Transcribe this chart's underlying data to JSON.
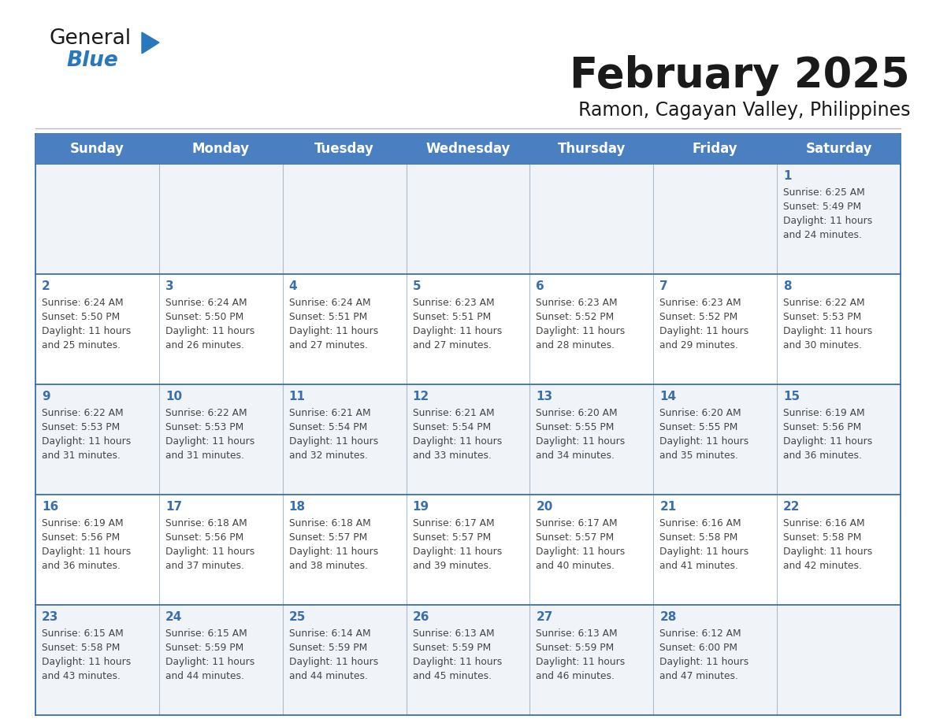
{
  "title": "February 2025",
  "subtitle": "Ramon, Cagayan Valley, Philippines",
  "header_bg": "#4a7fc1",
  "header_text_color": "#FFFFFF",
  "cell_bg_even": "#f0f4f8",
  "cell_bg_odd": "#FFFFFF",
  "border_color": "#3a6fad",
  "grid_color": "#aabbcc",
  "text_color": "#444444",
  "day_num_color": "#3a6fad",
  "days_of_week": [
    "Sunday",
    "Monday",
    "Tuesday",
    "Wednesday",
    "Thursday",
    "Friday",
    "Saturday"
  ],
  "calendar_data": [
    [
      null,
      null,
      null,
      null,
      null,
      null,
      {
        "day": "1",
        "sunrise": "6:25 AM",
        "sunset": "5:49 PM",
        "daylight": "11 hours",
        "daylight2": "and 24 minutes."
      }
    ],
    [
      {
        "day": "2",
        "sunrise": "6:24 AM",
        "sunset": "5:50 PM",
        "daylight": "11 hours",
        "daylight2": "and 25 minutes."
      },
      {
        "day": "3",
        "sunrise": "6:24 AM",
        "sunset": "5:50 PM",
        "daylight": "11 hours",
        "daylight2": "and 26 minutes."
      },
      {
        "day": "4",
        "sunrise": "6:24 AM",
        "sunset": "5:51 PM",
        "daylight": "11 hours",
        "daylight2": "and 27 minutes."
      },
      {
        "day": "5",
        "sunrise": "6:23 AM",
        "sunset": "5:51 PM",
        "daylight": "11 hours",
        "daylight2": "and 27 minutes."
      },
      {
        "day": "6",
        "sunrise": "6:23 AM",
        "sunset": "5:52 PM",
        "daylight": "11 hours",
        "daylight2": "and 28 minutes."
      },
      {
        "day": "7",
        "sunrise": "6:23 AM",
        "sunset": "5:52 PM",
        "daylight": "11 hours",
        "daylight2": "and 29 minutes."
      },
      {
        "day": "8",
        "sunrise": "6:22 AM",
        "sunset": "5:53 PM",
        "daylight": "11 hours",
        "daylight2": "and 30 minutes."
      }
    ],
    [
      {
        "day": "9",
        "sunrise": "6:22 AM",
        "sunset": "5:53 PM",
        "daylight": "11 hours",
        "daylight2": "and 31 minutes."
      },
      {
        "day": "10",
        "sunrise": "6:22 AM",
        "sunset": "5:53 PM",
        "daylight": "11 hours",
        "daylight2": "and 31 minutes."
      },
      {
        "day": "11",
        "sunrise": "6:21 AM",
        "sunset": "5:54 PM",
        "daylight": "11 hours",
        "daylight2": "and 32 minutes."
      },
      {
        "day": "12",
        "sunrise": "6:21 AM",
        "sunset": "5:54 PM",
        "daylight": "11 hours",
        "daylight2": "and 33 minutes."
      },
      {
        "day": "13",
        "sunrise": "6:20 AM",
        "sunset": "5:55 PM",
        "daylight": "11 hours",
        "daylight2": "and 34 minutes."
      },
      {
        "day": "14",
        "sunrise": "6:20 AM",
        "sunset": "5:55 PM",
        "daylight": "11 hours",
        "daylight2": "and 35 minutes."
      },
      {
        "day": "15",
        "sunrise": "6:19 AM",
        "sunset": "5:56 PM",
        "daylight": "11 hours",
        "daylight2": "and 36 minutes."
      }
    ],
    [
      {
        "day": "16",
        "sunrise": "6:19 AM",
        "sunset": "5:56 PM",
        "daylight": "11 hours",
        "daylight2": "and 36 minutes."
      },
      {
        "day": "17",
        "sunrise": "6:18 AM",
        "sunset": "5:56 PM",
        "daylight": "11 hours",
        "daylight2": "and 37 minutes."
      },
      {
        "day": "18",
        "sunrise": "6:18 AM",
        "sunset": "5:57 PM",
        "daylight": "11 hours",
        "daylight2": "and 38 minutes."
      },
      {
        "day": "19",
        "sunrise": "6:17 AM",
        "sunset": "5:57 PM",
        "daylight": "11 hours",
        "daylight2": "and 39 minutes."
      },
      {
        "day": "20",
        "sunrise": "6:17 AM",
        "sunset": "5:57 PM",
        "daylight": "11 hours",
        "daylight2": "and 40 minutes."
      },
      {
        "day": "21",
        "sunrise": "6:16 AM",
        "sunset": "5:58 PM",
        "daylight": "11 hours",
        "daylight2": "and 41 minutes."
      },
      {
        "day": "22",
        "sunrise": "6:16 AM",
        "sunset": "5:58 PM",
        "daylight": "11 hours",
        "daylight2": "and 42 minutes."
      }
    ],
    [
      {
        "day": "23",
        "sunrise": "6:15 AM",
        "sunset": "5:58 PM",
        "daylight": "11 hours",
        "daylight2": "and 43 minutes."
      },
      {
        "day": "24",
        "sunrise": "6:15 AM",
        "sunset": "5:59 PM",
        "daylight": "11 hours",
        "daylight2": "and 44 minutes."
      },
      {
        "day": "25",
        "sunrise": "6:14 AM",
        "sunset": "5:59 PM",
        "daylight": "11 hours",
        "daylight2": "and 44 minutes."
      },
      {
        "day": "26",
        "sunrise": "6:13 AM",
        "sunset": "5:59 PM",
        "daylight": "11 hours",
        "daylight2": "and 45 minutes."
      },
      {
        "day": "27",
        "sunrise": "6:13 AM",
        "sunset": "5:59 PM",
        "daylight": "11 hours",
        "daylight2": "and 46 minutes."
      },
      {
        "day": "28",
        "sunrise": "6:12 AM",
        "sunset": "6:00 PM",
        "daylight": "11 hours",
        "daylight2": "and 47 minutes."
      },
      null
    ]
  ],
  "logo_general_color": "#1a1a1a",
  "logo_blue_color": "#2878be",
  "logo_triangle_color": "#2878be",
  "title_color": "#1a1a1a",
  "subtitle_color": "#1a1a1a"
}
